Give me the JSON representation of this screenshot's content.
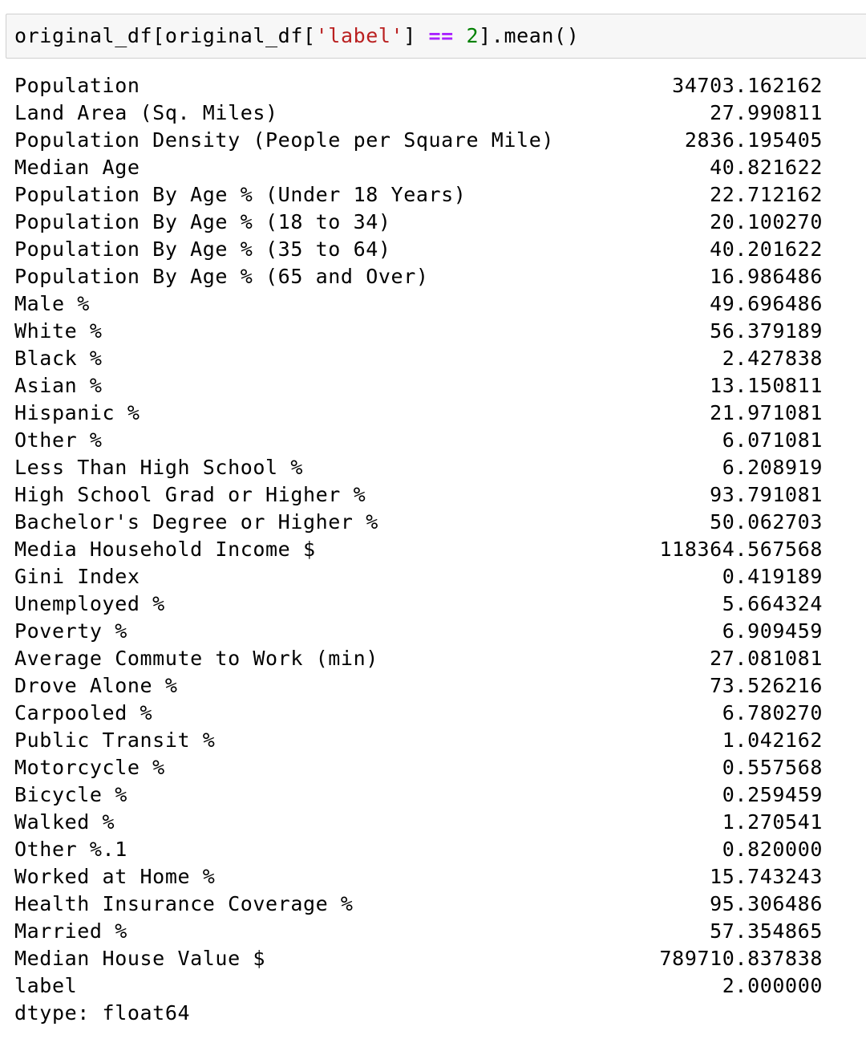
{
  "input": {
    "code_pre": "original_df[original_df[",
    "code_str": "'label'",
    "code_mid": "] ",
    "code_op": "==",
    "code_sp": " ",
    "code_num": "2",
    "code_post": "].mean()"
  },
  "output": {
    "rows": [
      {
        "label": "Population",
        "value": "34703.162162"
      },
      {
        "label": "Land Area (Sq. Miles)",
        "value": "27.990811"
      },
      {
        "label": "Population Density (People per Square Mile)",
        "value": "2836.195405"
      },
      {
        "label": "Median Age",
        "value": "40.821622"
      },
      {
        "label": "Population By Age % (Under 18 Years)",
        "value": "22.712162"
      },
      {
        "label": "Population By Age % (18 to 34)",
        "value": "20.100270"
      },
      {
        "label": "Population By Age % (35 to 64)",
        "value": "40.201622"
      },
      {
        "label": "Population By Age % (65 and Over)",
        "value": "16.986486"
      },
      {
        "label": "Male %",
        "value": "49.696486"
      },
      {
        "label": "White %",
        "value": "56.379189"
      },
      {
        "label": "Black %",
        "value": "2.427838"
      },
      {
        "label": "Asian %",
        "value": "13.150811"
      },
      {
        "label": "Hispanic %",
        "value": "21.971081"
      },
      {
        "label": "Other %",
        "value": "6.071081"
      },
      {
        "label": "Less Than High School %",
        "value": "6.208919"
      },
      {
        "label": "High School Grad or Higher %",
        "value": "93.791081"
      },
      {
        "label": "Bachelor's Degree or Higher %",
        "value": "50.062703"
      },
      {
        "label": "Media Household Income $",
        "value": "118364.567568"
      },
      {
        "label": "Gini Index",
        "value": "0.419189"
      },
      {
        "label": "Unemployed %",
        "value": "5.664324"
      },
      {
        "label": "Poverty %",
        "value": "6.909459"
      },
      {
        "label": "Average Commute to Work (min)",
        "value": "27.081081"
      },
      {
        "label": "Drove Alone %",
        "value": "73.526216"
      },
      {
        "label": "Carpooled %",
        "value": "6.780270"
      },
      {
        "label": "Public Transit %",
        "value": "1.042162"
      },
      {
        "label": "Motorcycle %",
        "value": "0.557568"
      },
      {
        "label": "Bicycle %",
        "value": "0.259459"
      },
      {
        "label": "Walked %",
        "value": "1.270541"
      },
      {
        "label": "Other %.1",
        "value": "0.820000"
      },
      {
        "label": "Worked at Home %",
        "value": "15.743243"
      },
      {
        "label": "Health Insurance Coverage %",
        "value": "95.306486"
      },
      {
        "label": "Married %",
        "value": "57.354865"
      },
      {
        "label": "Median House Value $",
        "value": "789710.837838"
      },
      {
        "label": "label",
        "value": "2.000000"
      }
    ],
    "dtype": "dtype: float64"
  }
}
